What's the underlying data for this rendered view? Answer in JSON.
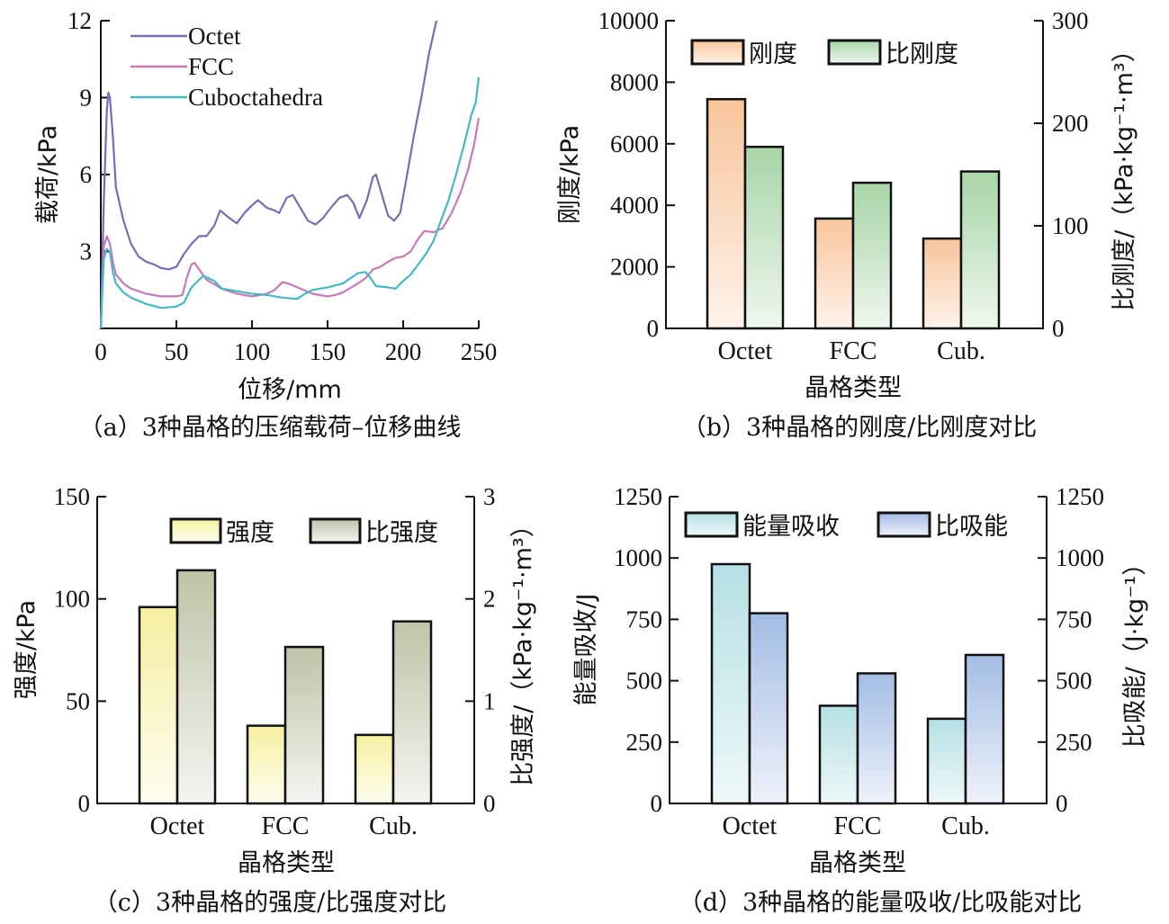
{
  "chart_data": [
    {
      "id": "a",
      "type": "line",
      "caption": "（a）3种晶格的压缩载荷–位移曲线",
      "xlabel": "位移/mm",
      "ylabel": "载荷/kPa",
      "xlim": [
        0,
        250
      ],
      "ylim": [
        0,
        12
      ],
      "xticks": [
        0,
        50,
        100,
        150,
        200,
        250
      ],
      "yticks": [
        3,
        6,
        9,
        12
      ],
      "x_tick_labels": [
        "0",
        "50",
        "100",
        "150",
        "200",
        "250"
      ],
      "y_tick_labels": [
        "3",
        "6",
        "9",
        "12"
      ],
      "grid": false,
      "legend_position": "top-left",
      "series": [
        {
          "name": "Octet",
          "color": "#7b6bb5",
          "points": [
            [
              0,
              0
            ],
            [
              2,
              5
            ],
            [
              4,
              8.5
            ],
            [
              5,
              9.2
            ],
            [
              6,
              9.0
            ],
            [
              8,
              7.5
            ],
            [
              10,
              5.5
            ],
            [
              15,
              4.2
            ],
            [
              20,
              3.3
            ],
            [
              25,
              2.8
            ],
            [
              30,
              2.6
            ],
            [
              35,
              2.5
            ],
            [
              40,
              2.35
            ],
            [
              45,
              2.3
            ],
            [
              50,
              2.4
            ],
            [
              55,
              2.9
            ],
            [
              60,
              3.3
            ],
            [
              65,
              3.6
            ],
            [
              70,
              3.6
            ],
            [
              75,
              4.0
            ],
            [
              79,
              4.6
            ],
            [
              85,
              4.3
            ],
            [
              90,
              4.1
            ],
            [
              95,
              4.5
            ],
            [
              100,
              4.8
            ],
            [
              104,
              5.0
            ],
            [
              110,
              4.7
            ],
            [
              115,
              4.6
            ],
            [
              118,
              4.5
            ],
            [
              123,
              5.1
            ],
            [
              127,
              5.2
            ],
            [
              132,
              4.7
            ],
            [
              137,
              4.2
            ],
            [
              142,
              4.05
            ],
            [
              147,
              4.3
            ],
            [
              152,
              4.7
            ],
            [
              158,
              5.1
            ],
            [
              163,
              5.2
            ],
            [
              167,
              4.9
            ],
            [
              171,
              4.3
            ],
            [
              176,
              5.0
            ],
            [
              180,
              5.9
            ],
            [
              182,
              6.0
            ],
            [
              185,
              5.4
            ],
            [
              190,
              4.4
            ],
            [
              194,
              4.2
            ],
            [
              198,
              4.5
            ],
            [
              202,
              5.8
            ],
            [
              207,
              7.5
            ],
            [
              212,
              9.0
            ],
            [
              217,
              10.7
            ],
            [
              222,
              12
            ]
          ]
        },
        {
          "name": "FCC",
          "color": "#c779b6",
          "points": [
            [
              0,
              0
            ],
            [
              2,
              3.2
            ],
            [
              4,
              3.6
            ],
            [
              6,
              3.3
            ],
            [
              8,
              2.6
            ],
            [
              10,
              2.1
            ],
            [
              15,
              1.75
            ],
            [
              20,
              1.55
            ],
            [
              30,
              1.35
            ],
            [
              40,
              1.25
            ],
            [
              50,
              1.25
            ],
            [
              54,
              1.3
            ],
            [
              57,
              2.0
            ],
            [
              60,
              2.5
            ],
            [
              62,
              2.55
            ],
            [
              65,
              2.3
            ],
            [
              70,
              1.9
            ],
            [
              80,
              1.55
            ],
            [
              90,
              1.35
            ],
            [
              100,
              1.25
            ],
            [
              110,
              1.35
            ],
            [
              115,
              1.5
            ],
            [
              120,
              1.8
            ],
            [
              124,
              1.75
            ],
            [
              130,
              1.6
            ],
            [
              140,
              1.35
            ],
            [
              150,
              1.25
            ],
            [
              155,
              1.3
            ],
            [
              160,
              1.4
            ],
            [
              170,
              1.75
            ],
            [
              175,
              1.95
            ],
            [
              180,
              2.3
            ],
            [
              185,
              2.4
            ],
            [
              190,
              2.6
            ],
            [
              195,
              2.75
            ],
            [
              200,
              2.8
            ],
            [
              205,
              3.0
            ],
            [
              210,
              3.5
            ],
            [
              214,
              3.8
            ],
            [
              220,
              3.75
            ],
            [
              226,
              3.9
            ],
            [
              232,
              4.5
            ],
            [
              238,
              5.3
            ],
            [
              243,
              6.2
            ],
            [
              247,
              7.2
            ],
            [
              250,
              8.2
            ]
          ]
        },
        {
          "name": "Cuboctahedra",
          "color": "#45b8c4",
          "points": [
            [
              0,
              0
            ],
            [
              1,
              1.5
            ],
            [
              2,
              2.7
            ],
            [
              4,
              3.1
            ],
            [
              6,
              3.0
            ],
            [
              8,
              2.2
            ],
            [
              10,
              1.75
            ],
            [
              15,
              1.4
            ],
            [
              20,
              1.2
            ],
            [
              30,
              0.95
            ],
            [
              40,
              0.8
            ],
            [
              50,
              0.85
            ],
            [
              55,
              1.0
            ],
            [
              60,
              1.6
            ],
            [
              65,
              1.9
            ],
            [
              68,
              2.05
            ],
            [
              75,
              1.85
            ],
            [
              80,
              1.55
            ],
            [
              90,
              1.45
            ],
            [
              100,
              1.35
            ],
            [
              110,
              1.3
            ],
            [
              120,
              1.2
            ],
            [
              130,
              1.15
            ],
            [
              135,
              1.35
            ],
            [
              140,
              1.5
            ],
            [
              150,
              1.6
            ],
            [
              160,
              1.75
            ],
            [
              165,
              1.95
            ],
            [
              170,
              2.15
            ],
            [
              175,
              2.2
            ],
            [
              178,
              2.0
            ],
            [
              182,
              1.65
            ],
            [
              190,
              1.6
            ],
            [
              195,
              1.55
            ],
            [
              200,
              1.85
            ],
            [
              205,
              2.1
            ],
            [
              210,
              2.5
            ],
            [
              215,
              2.9
            ],
            [
              220,
              3.4
            ],
            [
              225,
              4.2
            ],
            [
              230,
              5.0
            ],
            [
              235,
              6.0
            ],
            [
              240,
              7.1
            ],
            [
              245,
              8.3
            ],
            [
              248,
              8.8
            ],
            [
              250,
              9.8
            ]
          ]
        }
      ]
    },
    {
      "id": "b",
      "type": "bar",
      "caption": "（b）3种晶格的刚度/比刚度对比",
      "xlabel": "晶格类型",
      "ylabel": "刚度/kPa",
      "ylabel_right": "比刚度/（kPa·kg⁻¹·m³）",
      "categories": [
        "Octet",
        "FCC",
        "Cub."
      ],
      "ylim": [
        0,
        10000
      ],
      "ylim_right": [
        0,
        300
      ],
      "yticks": [
        0,
        2000,
        4000,
        6000,
        8000,
        10000
      ],
      "y_tick_labels": [
        "0",
        "2000",
        "4000",
        "6000",
        "8000",
        "10000"
      ],
      "yticks_right": [
        0,
        100,
        200,
        300
      ],
      "y_tick_labels_right": [
        "0",
        "100",
        "200",
        "300"
      ],
      "legend_position": "top",
      "series": [
        {
          "name": "刚度",
          "axis": "left",
          "values": [
            7450,
            3570,
            2920
          ],
          "color_top": "#f7c59b",
          "color_bottom": "#fff3ea"
        },
        {
          "name": "比刚度",
          "axis": "right",
          "values": [
            177,
            142,
            153
          ],
          "color_top": "#a8d5a8",
          "color_bottom": "#eef7ee"
        }
      ]
    },
    {
      "id": "c",
      "type": "bar",
      "caption": "（c）3种晶格的强度/比强度对比",
      "xlabel": "晶格类型",
      "ylabel": "强度/kPa",
      "ylabel_right": "比强度/（kPa·kg⁻¹·m³）",
      "categories": [
        "Octet",
        "FCC",
        "Cub."
      ],
      "ylim": [
        0,
        150
      ],
      "ylim_right": [
        0,
        3
      ],
      "yticks": [
        0,
        50,
        100,
        150
      ],
      "y_tick_labels": [
        "0",
        "50",
        "100",
        "150"
      ],
      "yticks_right": [
        0,
        1,
        2,
        3
      ],
      "y_tick_labels_right": [
        "0",
        "1",
        "2",
        "3"
      ],
      "legend_position": "top-right",
      "series": [
        {
          "name": "强度",
          "axis": "left",
          "values": [
            96,
            38,
            33.5
          ],
          "color_top": "#f5f0a0",
          "color_bottom": "#fefdf0"
        },
        {
          "name": "比强度",
          "axis": "right",
          "values": [
            2.28,
            1.53,
            1.78
          ],
          "color_top": "#bfc4a8",
          "color_bottom": "#f4f4f0"
        }
      ]
    },
    {
      "id": "d",
      "type": "bar",
      "caption": "（d）3种晶格的能量吸收/比吸能对比",
      "xlabel": "晶格类型",
      "ylabel": "能量吸收/J",
      "ylabel_right": "比吸能/（J·kg⁻¹）",
      "categories": [
        "Octet",
        "FCC",
        "Cub."
      ],
      "ylim": [
        0,
        1250
      ],
      "ylim_right": [
        0,
        1250
      ],
      "yticks": [
        0,
        250,
        500,
        750,
        1000,
        1250
      ],
      "y_tick_labels": [
        "0",
        "250",
        "500",
        "750",
        "1000",
        "1250"
      ],
      "yticks_right": [
        0,
        250,
        500,
        750,
        1000,
        1250
      ],
      "y_tick_labels_right": [
        "0",
        "250",
        "500",
        "750",
        "1000",
        "1250"
      ],
      "legend_position": "top",
      "series": [
        {
          "name": "能量吸收",
          "axis": "left",
          "values": [
            975,
            398,
            345
          ],
          "color_top": "#b6e0e4",
          "color_bottom": "#eef8f9"
        },
        {
          "name": "比吸能",
          "axis": "right",
          "values": [
            775,
            530,
            605
          ],
          "color_top": "#a3bde3",
          "color_bottom": "#eef2fa"
        }
      ]
    }
  ]
}
